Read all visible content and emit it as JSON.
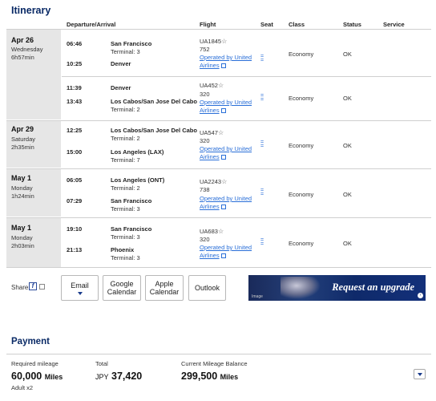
{
  "itinerary": {
    "title": "Itinerary",
    "headers": {
      "departure_arrival": "Departure/Arrival",
      "flight": "Flight",
      "seat": "Seat",
      "class": "Class",
      "status": "Status",
      "service": "Service"
    },
    "days": [
      {
        "date": "Apr 26",
        "weekday": "Wednesday",
        "duration": "6h57min"
      },
      {
        "date": "Apr 29",
        "weekday": "Saturday",
        "duration": "2h35min"
      },
      {
        "date": "May 1",
        "weekday": "Monday",
        "duration": "1h24min"
      },
      {
        "date": "May 1",
        "weekday": "Monday",
        "duration": "2h03min"
      }
    ],
    "segments": [
      {
        "dep_time": "06:46",
        "dep_city": "San Francisco",
        "dep_terminal": "Terminal: 3",
        "arr_time": "10:25",
        "arr_city": "Denver",
        "arr_terminal": "",
        "flight": "UA1845",
        "aircraft": "752",
        "operated_1": "Operated by United",
        "operated_2": "Airlines",
        "seat": "=",
        "class": "Economy",
        "status": "OK"
      },
      {
        "dep_time": "11:39",
        "dep_city": "Denver",
        "dep_terminal": "",
        "arr_time": "13:43",
        "arr_city": "Los Cabos/San Jose Del Cabo",
        "arr_terminal": "Terminal: 2",
        "flight": "UA452",
        "aircraft": "320",
        "operated_1": "Operated by United",
        "operated_2": "Airlines",
        "seat": "=",
        "class": "Economy",
        "status": "OK"
      },
      {
        "dep_time": "12:25",
        "dep_city": "Los Cabos/San Jose Del Cabo",
        "dep_terminal": "Terminal: 2",
        "arr_time": "15:00",
        "arr_city": "Los Angeles (LAX)",
        "arr_terminal": "Terminal: 7",
        "flight": "UA547",
        "aircraft": "320",
        "operated_1": "Operated by United",
        "operated_2": "Airlines",
        "seat": "=",
        "class": "Economy",
        "status": "OK"
      },
      {
        "dep_time": "06:05",
        "dep_city": "Los Angeles (ONT)",
        "dep_terminal": "Terminal: 2",
        "arr_time": "07:29",
        "arr_city": "San Francisco",
        "arr_terminal": "Terminal: 3",
        "flight": "UA2243",
        "aircraft": "738",
        "operated_1": "Operated by United",
        "operated_2": "Airlines",
        "seat": "=",
        "class": "Economy",
        "status": "OK"
      },
      {
        "dep_time": "19:10",
        "dep_city": "San Francisco",
        "dep_terminal": "Terminal: 3",
        "arr_time": "21:13",
        "arr_city": "Phoenix",
        "arr_terminal": "Terminal: 3",
        "flight": "UA683",
        "aircraft": "320",
        "operated_1": "Operated by United",
        "operated_2": "Airlines",
        "seat": "=",
        "class": "Economy",
        "status": "OK"
      }
    ]
  },
  "share": {
    "label": "Share",
    "fb_glyph": "f",
    "buttons": {
      "email": "Email",
      "google_1": "Google",
      "google_2": "Calendar",
      "apple_1": "Apple",
      "apple_2": "Calendar",
      "outlook": "Outlook"
    },
    "banner_text": "Request an upgrade",
    "banner_caption": "Image",
    "banner_arrow": "›"
  },
  "payment": {
    "title": "Payment",
    "required_label": "Required mileage",
    "required_value": "60,000",
    "required_unit": "Miles",
    "adult": "Adult x2",
    "total_label": "Total",
    "total_prefix": "JPY",
    "total_value": "37,420",
    "balance_label": "Current Mileage Balance",
    "balance_value": "299,500",
    "balance_unit": "Miles"
  },
  "colors": {
    "title": "#0a2a66",
    "link": "#2a6fd8",
    "day_cell": "#e6e6e6"
  }
}
